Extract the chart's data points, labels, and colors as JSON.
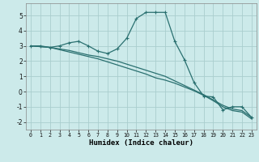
{
  "xlabel": "Humidex (Indice chaleur)",
  "xlim": [
    -0.5,
    23.5
  ],
  "ylim": [
    -2.5,
    5.8
  ],
  "bg_color": "#cceaea",
  "grid_color": "#aacece",
  "line_color": "#2a7070",
  "xticks": [
    0,
    1,
    2,
    3,
    4,
    5,
    6,
    7,
    8,
    9,
    10,
    11,
    12,
    13,
    14,
    15,
    16,
    17,
    18,
    19,
    20,
    21,
    22,
    23
  ],
  "yticks": [
    -2,
    -1,
    0,
    1,
    2,
    3,
    4,
    5
  ],
  "line1_x": [
    0,
    1,
    2,
    3,
    4,
    5,
    6,
    7,
    8,
    9,
    10,
    11,
    12,
    13,
    14,
    15,
    16,
    17,
    18,
    19,
    20,
    21,
    22,
    23
  ],
  "line1_y": [
    3.0,
    3.0,
    2.9,
    3.0,
    3.2,
    3.3,
    3.0,
    2.65,
    2.5,
    2.8,
    3.5,
    4.8,
    5.2,
    5.2,
    5.2,
    3.3,
    2.1,
    0.6,
    -0.3,
    -0.35,
    -1.2,
    -1.0,
    -1.0,
    -1.7
  ],
  "line2_x": [
    0,
    1,
    2,
    3,
    4,
    5,
    6,
    7,
    8,
    9,
    10,
    11,
    12,
    13,
    14,
    15,
    16,
    17,
    18,
    19,
    20,
    21,
    22,
    23
  ],
  "line2_y": [
    3.0,
    2.95,
    2.9,
    2.8,
    2.7,
    2.55,
    2.4,
    2.3,
    2.15,
    2.0,
    1.8,
    1.6,
    1.4,
    1.2,
    1.0,
    0.7,
    0.4,
    0.1,
    -0.2,
    -0.55,
    -0.9,
    -1.15,
    -1.25,
    -1.7
  ],
  "line3_x": [
    0,
    1,
    2,
    3,
    4,
    5,
    6,
    7,
    8,
    9,
    10,
    11,
    12,
    13,
    14,
    15,
    16,
    17,
    18,
    19,
    20,
    21,
    22,
    23
  ],
  "line3_y": [
    3.0,
    2.95,
    2.9,
    2.75,
    2.6,
    2.45,
    2.3,
    2.15,
    1.95,
    1.75,
    1.55,
    1.35,
    1.15,
    0.9,
    0.75,
    0.55,
    0.3,
    0.05,
    -0.25,
    -0.6,
    -1.0,
    -1.25,
    -1.35,
    -1.8
  ]
}
